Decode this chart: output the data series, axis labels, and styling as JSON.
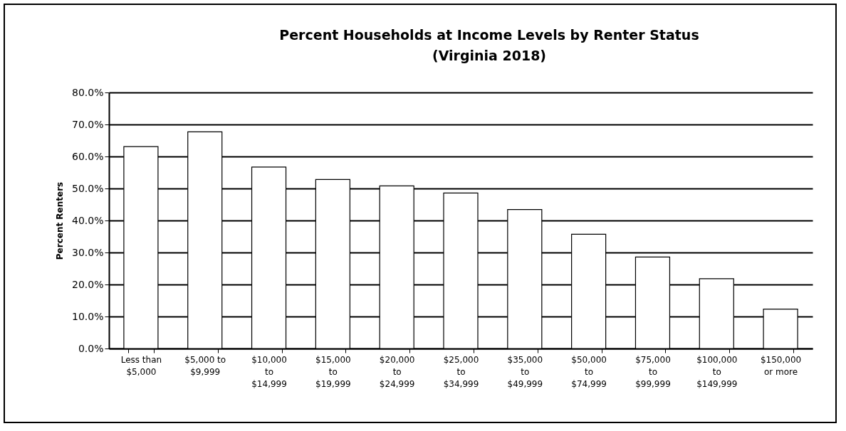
{
  "chart_data": {
    "type": "bar",
    "title": "Percent Households at Income Levels by Renter Status",
    "subtitle": "(Virginia 2018)",
    "ylabel": "Percent Renters",
    "categories": [
      "Less than $5,000",
      "$5,000 to $9,999",
      "$10,000 to $14,999",
      "$15,000 to $19,999",
      "$20,000 to $24,999",
      "$25,000 to $34,999",
      "$35,000 to $49,999",
      "$50,000 to $74,999",
      "$75,000 to $99,999",
      "$100,000 to $149,999",
      "$150,000 or more"
    ],
    "values": [
      63.1,
      67.7,
      56.7,
      52.8,
      50.8,
      48.6,
      43.4,
      35.7,
      28.6,
      21.8,
      12.3
    ],
    "color": "#ffffff",
    "ylim": [
      0,
      80
    ],
    "yticks": [
      {
        "value": 0,
        "label": "0.0%"
      },
      {
        "value": 10,
        "label": "10.0%"
      },
      {
        "value": 20,
        "label": "20.0%"
      },
      {
        "value": 30,
        "label": "30.0%"
      },
      {
        "value": 40,
        "label": "40.0%"
      },
      {
        "value": 50,
        "label": "50.0%"
      },
      {
        "value": 60,
        "label": "60.0%"
      },
      {
        "value": 70,
        "label": "70.0%"
      },
      {
        "value": 80,
        "label": "80.0%"
      }
    ],
    "grid": true
  }
}
